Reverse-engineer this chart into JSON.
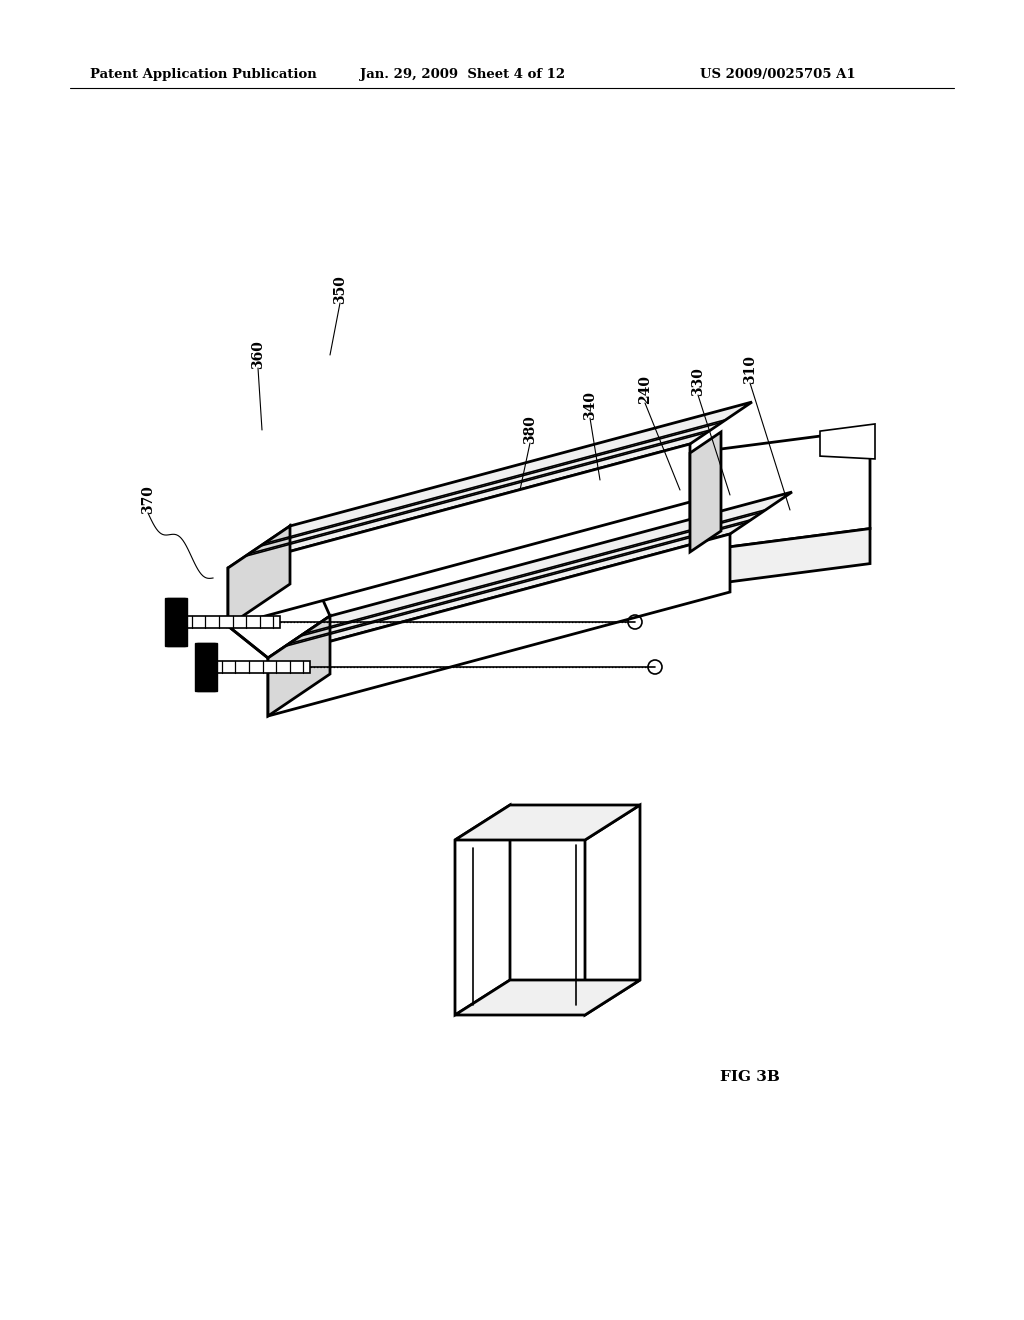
{
  "bg_color": "#ffffff",
  "header_left": "Patent Application Publication",
  "header_mid": "Jan. 29, 2009  Sheet 4 of 12",
  "header_right": "US 2009/0025705 A1",
  "fig_label": "FIG 3B",
  "line_color": "#000000",
  "fill_white": "#ffffff",
  "fill_light": "#f0f0f0",
  "fill_mid": "#d8d8d8"
}
